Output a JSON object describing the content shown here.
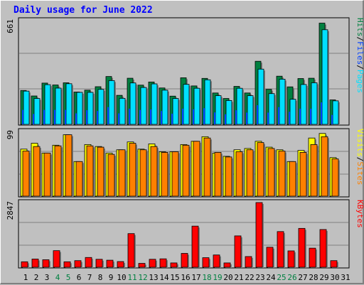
{
  "title": "Daily usage for June 2022",
  "colors": {
    "hits": "#008040",
    "files": "#0040ff",
    "pages": "#00e0ff",
    "visits": "#ffff00",
    "sites": "#ff8000",
    "kbytes": "#ff0000",
    "weekend": "#008040",
    "weekday": "#000000"
  },
  "chart_data": [
    {
      "type": "bar",
      "panel": "top",
      "ymax_label": "661",
      "ylim": [
        0,
        661
      ],
      "categories": [
        "1",
        "2",
        "3",
        "4",
        "5",
        "6",
        "7",
        "8",
        "9",
        "10",
        "11",
        "12",
        "13",
        "14",
        "15",
        "16",
        "17",
        "18",
        "19",
        "20",
        "21",
        "22",
        "23",
        "24",
        "25",
        "26",
        "27",
        "28",
        "29",
        "30",
        "31"
      ],
      "weekend_days": [
        4,
        5,
        11,
        12,
        18,
        19,
        25,
        26
      ],
      "legend": [
        {
          "text": "Hits",
          "color_key": "hits"
        },
        {
          "text": "/",
          "color_key": "weekday"
        },
        {
          "text": "Files",
          "color_key": "files"
        },
        {
          "text": "/",
          "color_key": "weekday"
        },
        {
          "text": "Pages",
          "color_key": "pages"
        }
      ],
      "series": [
        {
          "name": "Hits",
          "values": [
            216,
            181,
            263,
            251,
            265,
            206,
            218,
            240,
            305,
            185,
            294,
            250,
            270,
            232,
            180,
            297,
            245,
            293,
            200,
            165,
            242,
            200,
            402,
            223,
            307,
            239,
            292,
            294,
            645,
            156,
            0
          ]
        },
        {
          "name": "Files",
          "values": [
            92,
            66,
            92,
            92,
            92,
            70,
            90,
            85,
            110,
            70,
            100,
            92,
            95,
            85,
            68,
            100,
            96,
            103,
            76,
            64,
            90,
            75,
            122,
            75,
            110,
            80,
            100,
            100,
            140,
            60,
            0
          ]
        },
        {
          "name": "Pages",
          "values": [
            212,
            165,
            253,
            231,
            259,
            204,
            204,
            223,
            279,
            166,
            264,
            235,
            258,
            218,
            165,
            255,
            230,
            284,
            183,
            152,
            230,
            183,
            352,
            196,
            288,
            160,
            254,
            265,
            603,
            150,
            0
          ]
        }
      ]
    },
    {
      "type": "bar",
      "panel": "middle",
      "ymax_label": "99",
      "ylim": [
        0,
        99
      ],
      "categories": [
        "1",
        "2",
        "3",
        "4",
        "5",
        "6",
        "7",
        "8",
        "9",
        "10",
        "11",
        "12",
        "13",
        "14",
        "15",
        "16",
        "17",
        "18",
        "19",
        "20",
        "21",
        "22",
        "23",
        "24",
        "25",
        "26",
        "27",
        "28",
        "29",
        "30",
        "31"
      ],
      "legend": [
        {
          "text": "Visits",
          "color_key": "visits"
        },
        {
          "text": "/",
          "color_key": "weekday"
        },
        {
          "text": "Sites",
          "color_key": "sites"
        }
      ],
      "series": [
        {
          "name": "Visits",
          "values": [
            72,
            81,
            66,
            78,
            94,
            53,
            79,
            76,
            66,
            71,
            83,
            72,
            80,
            68,
            68,
            79,
            84,
            91,
            66,
            61,
            71,
            73,
            84,
            75,
            71,
            53,
            70,
            89,
            96,
            59,
            0
          ]
        },
        {
          "name": "Sites",
          "values": [
            69,
            76,
            66,
            77,
            94,
            53,
            77,
            75,
            64,
            71,
            81,
            71,
            76,
            67,
            68,
            78,
            84,
            89,
            67,
            60,
            68,
            71,
            82,
            73,
            69,
            53,
            67,
            79,
            91,
            57,
            0
          ]
        }
      ]
    },
    {
      "type": "bar",
      "panel": "bottom",
      "ymax_label": "2847",
      "ylim": [
        0,
        2847
      ],
      "categories": [
        "1",
        "2",
        "3",
        "4",
        "5",
        "6",
        "7",
        "8",
        "9",
        "10",
        "11",
        "12",
        "13",
        "14",
        "15",
        "16",
        "17",
        "18",
        "19",
        "20",
        "21",
        "22",
        "23",
        "24",
        "25",
        "26",
        "27",
        "28",
        "29",
        "30",
        "31"
      ],
      "legend": [
        {
          "text": "KBytes",
          "color_key": "kbytes"
        }
      ],
      "series": [
        {
          "name": "KBytes",
          "values": [
            240,
            360,
            330,
            730,
            240,
            290,
            430,
            350,
            310,
            250,
            1480,
            170,
            350,
            370,
            190,
            610,
            1810,
            420,
            540,
            190,
            1380,
            470,
            2847,
            880,
            1570,
            720,
            1710,
            840,
            1660,
            290,
            0
          ]
        }
      ]
    }
  ]
}
